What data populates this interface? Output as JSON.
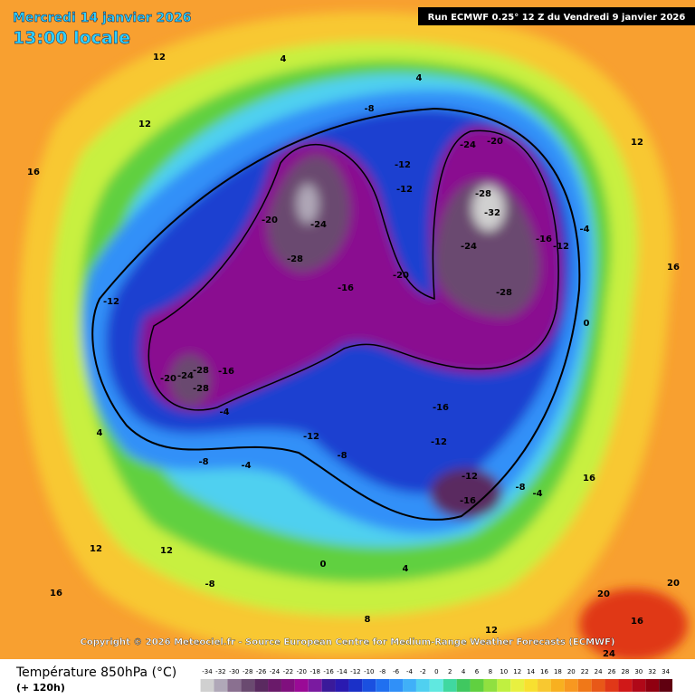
{
  "header": {
    "date": "Mercredi 14 janvier 2026",
    "time": "13:00 locale",
    "run": "Run ECMWF 0.25° 12 Z du Vendredi 9 janvier 2026"
  },
  "map": {
    "labels": [
      "-24",
      "-28",
      "-28",
      "-20",
      "-16",
      "-12",
      "-8",
      "-4",
      "-4",
      "-28",
      "-24",
      "-20",
      "-16",
      "-20",
      "-12",
      "-8",
      "-12",
      "-24",
      "-20",
      "-28",
      "-32",
      "-24",
      "-28",
      "-16",
      "-12",
      "-4",
      "0",
      "-12",
      "-16",
      "-12",
      "-16",
      "-8",
      "-4",
      "-12",
      "-8",
      "0",
      "4",
      "4",
      "12",
      "12",
      "16",
      "16",
      "12",
      "4",
      "12",
      "12",
      "16",
      "-8",
      "4",
      "8",
      "12",
      "20",
      "16",
      "24",
      "16",
      "20"
    ]
  },
  "copyright": "Copyright © 2026 Meteociel.fr - Source European Centre for Medium-Range Weather Forecasts (ECMWF)",
  "legend": {
    "title": "Température 850hPa (°C)",
    "subtitle": "(+ 120h)",
    "ticks": [
      -34,
      -32,
      -30,
      -28,
      -26,
      -24,
      -22,
      -20,
      -18,
      -16,
      -14,
      -12,
      -10,
      -8,
      -6,
      -4,
      -2,
      0,
      2,
      4,
      6,
      8,
      10,
      12,
      14,
      16,
      18,
      20,
      22,
      24,
      26,
      28,
      30,
      32,
      34
    ]
  }
}
